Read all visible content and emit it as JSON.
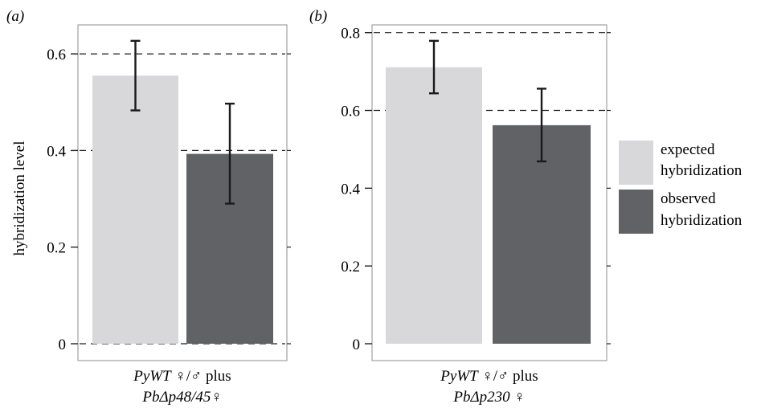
{
  "chart_data": [
    {
      "type": "bar",
      "panel_label": "(a)",
      "ylabel": "hybridization level",
      "ylim": [
        0,
        0.66
      ],
      "yticks": [
        0,
        0.2,
        0.4,
        0.6
      ],
      "ytick_labels": [
        "0",
        "0.2",
        "0.4",
        "0.6"
      ],
      "dashed_reference_lines": [
        0,
        0.4,
        0.6
      ],
      "categories": [
        "expected hybridization",
        "observed hybridization"
      ],
      "values": [
        0.555,
        0.393
      ],
      "error_bars": [
        [
          0.483,
          0.627
        ],
        [
          0.29,
          0.497
        ]
      ],
      "xlabel_line1_italic": "PyWT",
      "xlabel_line1_rest": " ♀/♂ plus",
      "xlabel_line2": "PbΔp48/45♀"
    },
    {
      "type": "bar",
      "panel_label": "(b)",
      "ylabel": "",
      "ylim": [
        0,
        0.82
      ],
      "yticks": [
        0,
        0.2,
        0.4,
        0.6,
        0.8
      ],
      "ytick_labels": [
        "0",
        "0.2",
        "0.4",
        "0.6",
        "0.8"
      ],
      "dashed_reference_lines": [
        0.6,
        0.8
      ],
      "categories": [
        "expected hybridization",
        "observed hybridization"
      ],
      "values": [
        0.711,
        0.562
      ],
      "error_bars": [
        [
          0.644,
          0.779
        ],
        [
          0.469,
          0.656
        ]
      ],
      "xlabel_line1_italic": "PyWT",
      "xlabel_line1_rest": " ♀/♂ plus",
      "xlabel_line2": "PbΔp230 ♀"
    }
  ],
  "legend": {
    "placement": "right",
    "items": [
      {
        "line1": "expected",
        "line2": "hybridization",
        "color": "#d8d8da"
      },
      {
        "line1": "observed",
        "line2": "hybridization",
        "color": "#616265"
      }
    ]
  },
  "colors": {
    "expected": "#d8d8da",
    "observed": "#616265",
    "frame": "#a0a0a0"
  }
}
